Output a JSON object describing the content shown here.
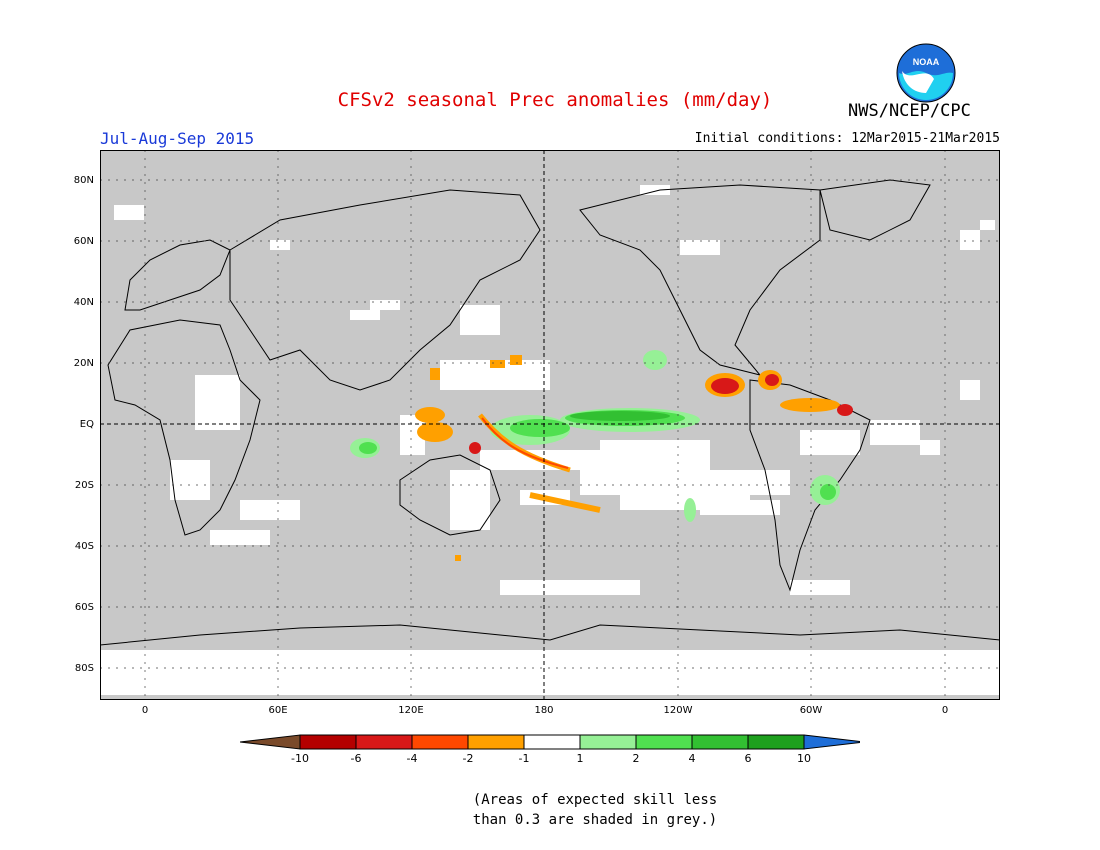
{
  "header": {
    "title": "CFSv2 seasonal Prec anomalies (mm/day)",
    "org": "NWS/NCEP/CPC",
    "logo_text": "NOAA",
    "season": "Jul-Aug-Sep 2015",
    "initial_conditions": "Initial conditions: 12Mar2015-21Mar2015"
  },
  "map": {
    "lat_labels": [
      "80N",
      "60N",
      "40N",
      "20N",
      "EQ",
      "20S",
      "40S",
      "60S",
      "80S"
    ],
    "lon_labels": [
      "0",
      "60E",
      "120E",
      "180",
      "120W",
      "60W",
      "0"
    ],
    "colors": {
      "grey_mask": "#c8c8c8",
      "land_outline": "#000000"
    }
  },
  "legend": {
    "labels": [
      "-10",
      "-6",
      "-4",
      "-2",
      "-1",
      "1",
      "2",
      "4",
      "6",
      "10"
    ],
    "colors": [
      "#7a4a2a",
      "#b40000",
      "#d81818",
      "#ff4800",
      "#ffa000",
      "#ffffff",
      "#96f096",
      "#50e050",
      "#32c032",
      "#1ea01e",
      "#1e6ed8"
    ]
  },
  "footnote": {
    "line1": "(Areas of expected skill less",
    "line2": "than 0.3 are shaded in grey.)"
  }
}
